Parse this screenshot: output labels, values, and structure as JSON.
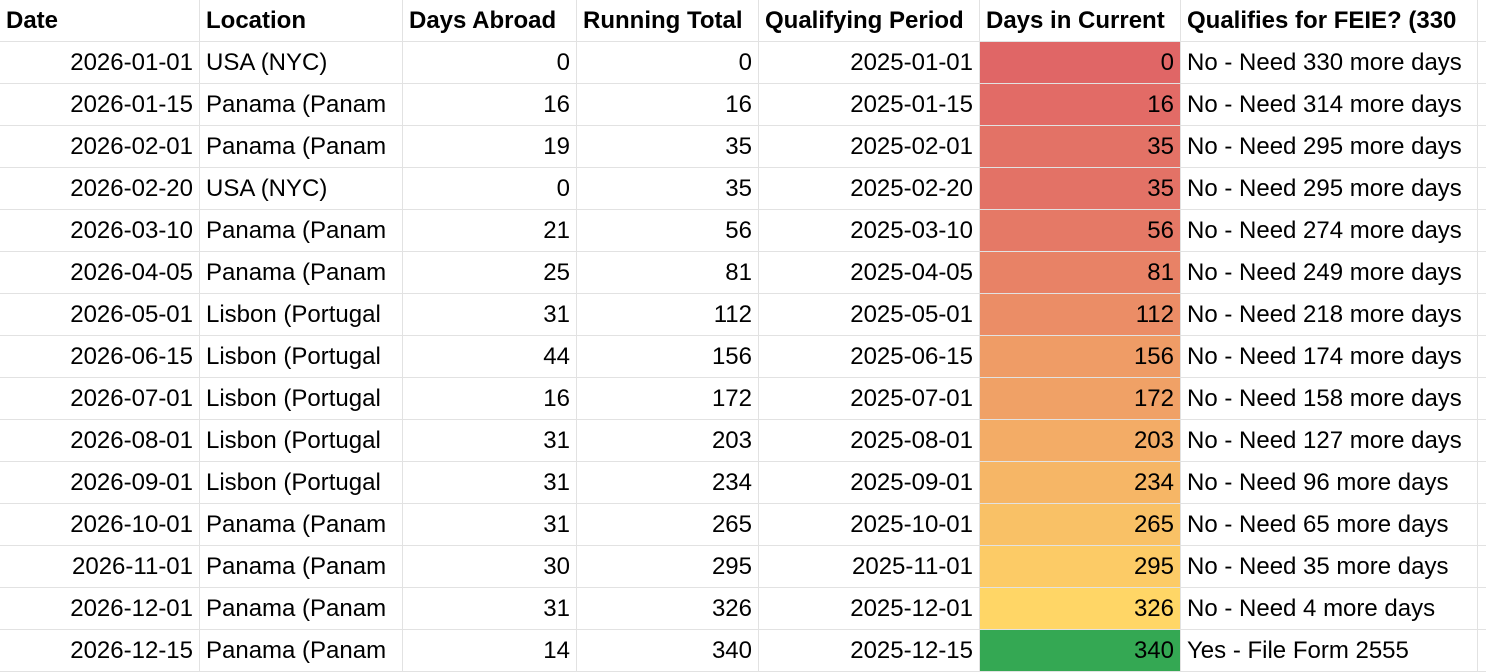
{
  "table": {
    "headers": [
      "Date",
      "Location",
      "Days Abroad",
      "Running Total",
      "Qualifying Period",
      "Days in Current",
      "Qualifies for FEIE? (330"
    ],
    "rows": [
      [
        "2026-01-01",
        "USA (NYC)",
        0,
        0,
        "2025-01-01",
        0,
        "No - Need 330 more days"
      ],
      [
        "2026-01-15",
        "Panama (Panam",
        16,
        16,
        "2025-01-15",
        16,
        "No - Need 314 more days"
      ],
      [
        "2026-02-01",
        "Panama (Panam",
        19,
        35,
        "2025-02-01",
        35,
        "No - Need 295 more days"
      ],
      [
        "2026-02-20",
        "USA (NYC)",
        0,
        35,
        "2025-02-20",
        35,
        "No - Need 295 more days"
      ],
      [
        "2026-03-10",
        "Panama (Panam",
        21,
        56,
        "2025-03-10",
        56,
        "No - Need 274 more days"
      ],
      [
        "2026-04-05",
        "Panama (Panam",
        25,
        81,
        "2025-04-05",
        81,
        "No - Need 249 more days"
      ],
      [
        "2026-05-01",
        "Lisbon (Portugal",
        31,
        112,
        "2025-05-01",
        112,
        "No - Need 218 more days"
      ],
      [
        "2026-06-15",
        "Lisbon (Portugal",
        44,
        156,
        "2025-06-15",
        156,
        "No - Need 174 more days"
      ],
      [
        "2026-07-01",
        "Lisbon (Portugal",
        16,
        172,
        "2025-07-01",
        172,
        "No - Need 158 more days"
      ],
      [
        "2026-08-01",
        "Lisbon (Portugal",
        31,
        203,
        "2025-08-01",
        203,
        "No - Need 127 more days"
      ],
      [
        "2026-09-01",
        "Lisbon (Portugal",
        31,
        234,
        "2025-09-01",
        234,
        "No - Need 96 more days"
      ],
      [
        "2026-10-01",
        "Panama (Panam",
        31,
        265,
        "2025-10-01",
        265,
        "No - Need 65 more days"
      ],
      [
        "2026-11-01",
        "Panama (Panam",
        30,
        295,
        "2025-11-01",
        295,
        "No - Need 35 more days"
      ],
      [
        "2026-12-01",
        "Panama (Panam",
        31,
        326,
        "2025-12-01",
        326,
        "No - Need 4 more days"
      ],
      [
        "2026-12-15",
        "Panama (Panam",
        14,
        340,
        "2025-12-15",
        340,
        "Yes - File Form 2555"
      ]
    ],
    "fills": [
      "#e06666",
      "#e26b66",
      "#e37266",
      "#e37266",
      "#e57966",
      "#e88266",
      "#eb8d66",
      "#ef9c66",
      "#f0a166",
      "#f3ac66",
      "#f6b666",
      "#f9c166",
      "#fccb66",
      "#ffd666",
      "#34a853"
    ]
  }
}
